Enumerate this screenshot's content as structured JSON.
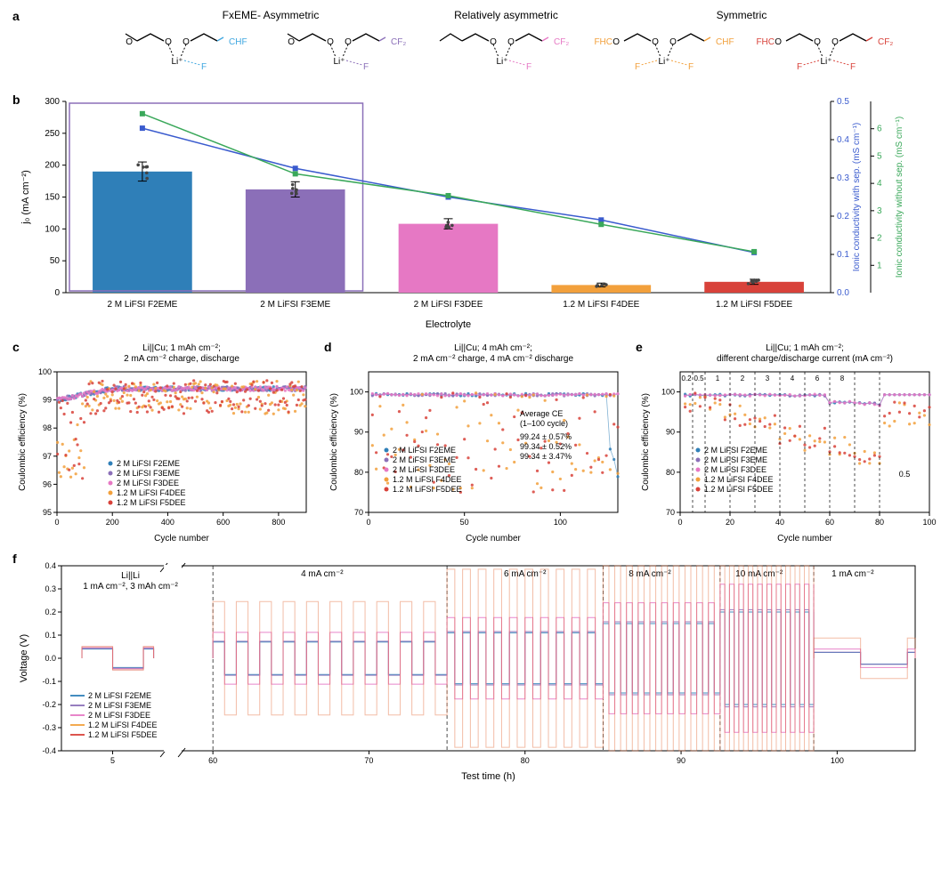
{
  "colors": {
    "f2eme": "#2f7fb8",
    "f3eme": "#8b6fb8",
    "f3dee": "#e678c4",
    "f4dee": "#f2a03c",
    "f5dee": "#d8423a",
    "cond_sep": "#3a5bce",
    "cond_nosep": "#3aa85a",
    "axis": "#000000",
    "grid": "#bbbbbb",
    "highlight_box": "#8b6fb8",
    "mol_blue": "#3fa7e0",
    "mol_purple": "#8b6fb8",
    "mol_pink": "#e678c4",
    "mol_orange": "#f2a03c",
    "mol_red": "#d8423a"
  },
  "fonts": {
    "panel_label": 14,
    "axis_label": 11,
    "tick": 10,
    "legend": 10,
    "title": 11
  },
  "panel_a": {
    "headers": [
      "FxEME- Asymmetric",
      "Relatively asymmetric",
      "Symmetric"
    ],
    "molecules": [
      {
        "accent": "#3fa7e0",
        "right_label": "CHF"
      },
      {
        "accent": "#8b6fb8",
        "right_label": "CF₂"
      },
      {
        "accent": "#e678c4",
        "right_label": "CF₂",
        "left_ethyl": true
      },
      {
        "accent": "#f2a03c",
        "right_label": "CHF",
        "left_label": "FHC",
        "sym": true
      },
      {
        "accent": "#d8423a",
        "right_label": "CF₂",
        "left_label": "FHC",
        "sym": true
      }
    ]
  },
  "panel_b": {
    "ylabel_left": "j₀ (mA cm⁻²)",
    "ylabel_right1": "Ionic conductivity with sep. (mS cm⁻¹)",
    "ylabel_right2": "Ionic conductivity without sep. (mS cm⁻¹)",
    "xlabel": "Electrolyte",
    "ylim_left": [
      0,
      300
    ],
    "ytick_left_step": 50,
    "ylim_r1": [
      0,
      0.5
    ],
    "ytick_r1_step": 0.1,
    "ylim_r2": [
      0,
      7
    ],
    "ytick_r2": [
      1,
      2,
      3,
      4,
      5,
      6
    ],
    "categories": [
      "2 M LiFSI F2EME",
      "2 M LiFSI F3EME",
      "2 M LiFSI F3DEE",
      "1.2 M LiFSI F4DEE",
      "1.2 M LiFSI F5DEE"
    ],
    "bar_values": [
      190,
      162,
      108,
      12,
      17
    ],
    "bar_err": [
      15,
      12,
      8,
      3,
      4
    ],
    "bar_colors": [
      "#2f7fb8",
      "#8b6fb8",
      "#e678c4",
      "#f2a03c",
      "#d8423a"
    ],
    "bar_width": 0.65,
    "cond_sep_values": [
      0.43,
      0.325,
      0.25,
      0.19,
      0.105
    ],
    "cond_nosep_values": [
      6.55,
      4.35,
      3.55,
      2.5,
      1.5
    ],
    "highlight_first_n": 2
  },
  "panels_cde": {
    "ylabel": "Coulombic efficiency (%)",
    "xlabel": "Cycle number",
    "legend_items": [
      {
        "label": "2 M LiFSI F2EME",
        "color": "#2f7fb8"
      },
      {
        "label": "2 M LiFSI F3EME",
        "color": "#8b6fb8"
      },
      {
        "label": "2 M LiFSI F3DEE",
        "color": "#e678c4"
      },
      {
        "label": "1.2 M LiFSI F4DEE",
        "color": "#f2a03c"
      },
      {
        "label": "1.2 M LiFSI F5DEE",
        "color": "#d8423a"
      }
    ],
    "c": {
      "title": "Li||Cu; 1 mAh cm⁻²;\n2 mA cm⁻² charge, discharge",
      "xlim": [
        0,
        900
      ],
      "xticks": [
        0,
        200,
        400,
        600,
        800
      ],
      "ylim": [
        95,
        100
      ],
      "yticks": [
        95,
        96,
        97,
        98,
        99,
        100
      ]
    },
    "d": {
      "title": "Li||Cu; 4 mAh cm⁻²;\n2 mA cm⁻² charge, 4 mA cm⁻² discharge",
      "xlim": [
        0,
        130
      ],
      "xticks": [
        0,
        50,
        100
      ],
      "ylim": [
        70,
        105
      ],
      "yticks": [
        70,
        80,
        90,
        100
      ],
      "avg_ce_label": "Average CE\n(1–100 cycle)",
      "avg_ce": [
        "99.24 ± 0.57%",
        "99.34 ± 0.52%",
        "99.34 ± 3.47%"
      ]
    },
    "e": {
      "title": "Li||Cu; 1 mAh cm⁻²;\ndifferent charge/discharge current (mA cm⁻²)",
      "xlim": [
        0,
        100
      ],
      "xticks": [
        0,
        20,
        40,
        60,
        80,
        100
      ],
      "ylim": [
        70,
        105
      ],
      "yticks": [
        70,
        80,
        90,
        100
      ],
      "rate_labels": [
        "0.2",
        "0.5",
        "1",
        "2",
        "3",
        "4",
        "6",
        "8"
      ],
      "rate_divisions": [
        0,
        5,
        10,
        20,
        30,
        40,
        50,
        60,
        70,
        80
      ],
      "final_label": "0.5"
    }
  },
  "panel_f": {
    "title": "Li||Li\n1 mA cm⁻², 3 mAh cm⁻²",
    "ylabel": "Voltage (V)",
    "xlabel": "Test time (h)",
    "ylim": [
      -0.4,
      0.4
    ],
    "yticks": [
      -0.4,
      -0.3,
      -0.2,
      -0.1,
      0,
      0.1,
      0.2,
      0.3,
      0.4
    ],
    "x_break": [
      10,
      58
    ],
    "xticks_left": [
      5
    ],
    "xticks_right": [
      60,
      70,
      80,
      90,
      100
    ],
    "region_labels": [
      {
        "x": 67,
        "label": "4 mA cm⁻²"
      },
      {
        "x": 80,
        "label": "6 mA cm⁻²"
      },
      {
        "x": 88,
        "label": "8 mA cm⁻²"
      },
      {
        "x": 95,
        "label": "10 mA cm⁻²"
      },
      {
        "x": 101,
        "label": "1 mA cm⁻²"
      }
    ],
    "region_divisions": [
      60,
      75,
      85,
      92.5,
      98.5
    ],
    "legend_items": [
      {
        "label": "2 M LiFSI F2EME",
        "color": "#2f7fb8"
      },
      {
        "label": "2 M LiFSI F3EME",
        "color": "#8b6fb8"
      },
      {
        "label": "2 M LiFSI F3DEE",
        "color": "#e678c4"
      },
      {
        "label": "1.2 M LiFSI F4DEE",
        "color": "#f2a03c"
      },
      {
        "label": "1.2 M LiFSI F5DEE",
        "color": "#d8423a"
      }
    ]
  }
}
